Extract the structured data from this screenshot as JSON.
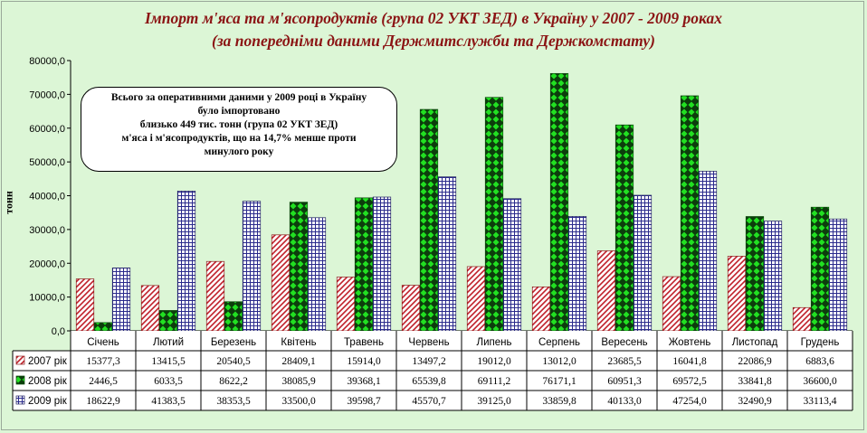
{
  "chart_data": {
    "type": "bar",
    "title_line1": "Імпорт м'яса та м'ясопродуктів (група 02 УКТ ЗЕД) в Україну у 2007 - 2009 роках",
    "title_line2": "(за попередніми даними Держмитслужби та Держкомстату)",
    "ylabel": "тонн",
    "ylim": [
      0,
      80000
    ],
    "yticks": [
      "0,0",
      "10000,0",
      "20000,0",
      "30000,0",
      "40000,0",
      "50000,0",
      "60000,0",
      "70000,0",
      "80000,0"
    ],
    "categories": [
      "Січень",
      "Лютий",
      "Березень",
      "Квітень",
      "Травень",
      "Червень",
      "Липень",
      "Серпень",
      "Вересень",
      "Жовтень",
      "Листопад",
      "Грудень"
    ],
    "series": [
      {
        "name": "2007 рік",
        "values": [
          15377.3,
          13415.5,
          20540.5,
          28409.1,
          15914.0,
          13497.2,
          19012.0,
          13012.0,
          23685.5,
          16041.8,
          22086.9,
          6883.6
        ],
        "labels": [
          "15377,3",
          "13415,5",
          "20540,5",
          "28409,1",
          "15914,0",
          "13497,2",
          "19012,0",
          "13012,0",
          "23685,5",
          "16041,8",
          "22086,9",
          "6883,6"
        ]
      },
      {
        "name": "2008 рік",
        "values": [
          2446.5,
          6033.5,
          8622.2,
          38085.9,
          39368.1,
          65539.8,
          69111.2,
          76171.1,
          60951.3,
          69572.5,
          33841.8,
          36600.0
        ],
        "labels": [
          "2446,5",
          "6033,5",
          "8622,2",
          "38085,9",
          "39368,1",
          "65539,8",
          "69111,2",
          "76171,1",
          "60951,3",
          "69572,5",
          "33841,8",
          "36600,0"
        ]
      },
      {
        "name": "2009 рік",
        "values": [
          18622.9,
          41383.5,
          38353.5,
          33500.0,
          39598.7,
          45570.7,
          39125.0,
          33859.8,
          40133.0,
          47254.0,
          32490.9,
          33113.4
        ],
        "labels": [
          "18622,9",
          "41383,5",
          "38353,5",
          "33500,0",
          "39598,7",
          "45570,7",
          "39125,0",
          "33859,8",
          "40133,0",
          "47254,0",
          "32490,9",
          "33113,4"
        ]
      }
    ],
    "annotation": [
      "Всього за оперативними даними у 2009 році в Україну",
      "було імпортовано",
      "близько 449 тис. тонн (група 02 УКТ ЗЕД)",
      "м'яса і м'ясопродуктів, що на 14,7% менше проти",
      "минулого року"
    ],
    "legend": "data-table",
    "grid": false,
    "colors": {
      "s2007": "#c0202a",
      "s2008": "#1fd11f",
      "s2009": "#2a2a8c"
    }
  }
}
